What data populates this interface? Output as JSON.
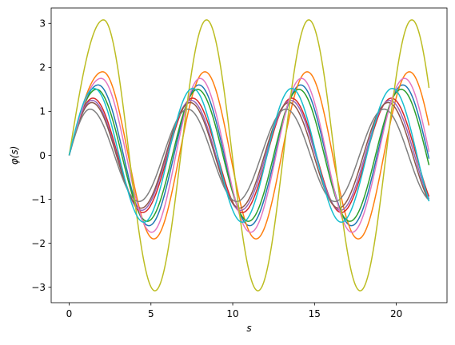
{
  "chart_data": {
    "type": "line",
    "title": "",
    "xlabel": "s",
    "ylabel": "φ(s)",
    "xlim": [
      -1.1,
      23.1
    ],
    "ylim": [
      -3.35,
      3.35
    ],
    "xticks": [
      0,
      5,
      10,
      15,
      20
    ],
    "yticks": [
      -3,
      -2,
      -1,
      0,
      1,
      2,
      3
    ],
    "grid": false,
    "legend": "none",
    "x_range": [
      0,
      22
    ],
    "series": [
      {
        "color": "#1f77b4",
        "peak_positions": [
          1.77,
          7.93,
          14.15,
          20.4
        ],
        "peak_value": 1.6
      },
      {
        "color": "#ff7f0e",
        "peak_positions": [
          2.05,
          8.3,
          14.55,
          20.8
        ],
        "peak_value": 1.9
      },
      {
        "color": "#2ca02c",
        "peak_positions": [
          1.67,
          7.85,
          14.05,
          20.3
        ],
        "peak_value": 1.5
      },
      {
        "color": "#d62728",
        "peak_positions": [
          1.45,
          7.55,
          13.6,
          19.7
        ],
        "peak_value": 1.3
      },
      {
        "color": "#9467bd",
        "peak_positions": [
          1.4,
          7.45,
          13.55,
          19.6
        ],
        "peak_value": 1.25
      },
      {
        "color": "#8c564b",
        "peak_positions": [
          1.38,
          7.4,
          13.45,
          19.5
        ],
        "peak_value": 1.2
      },
      {
        "color": "#e377c2",
        "peak_positions": [
          1.95,
          8.0,
          14.2,
          20.5
        ],
        "peak_value": 1.75
      },
      {
        "color": "#7f7f7f",
        "peak_positions": [
          1.27,
          7.25,
          13.25,
          19.25
        ],
        "peak_value": 1.05
      },
      {
        "color": "#bcbd22",
        "peak_positions": [
          2.1,
          8.4,
          14.65,
          20.95
        ],
        "peak_value": 3.08
      },
      {
        "color": "#17becf",
        "peak_positions": [
          1.53,
          7.55,
          13.6,
          19.75
        ],
        "peak_value": 1.52
      }
    ]
  }
}
